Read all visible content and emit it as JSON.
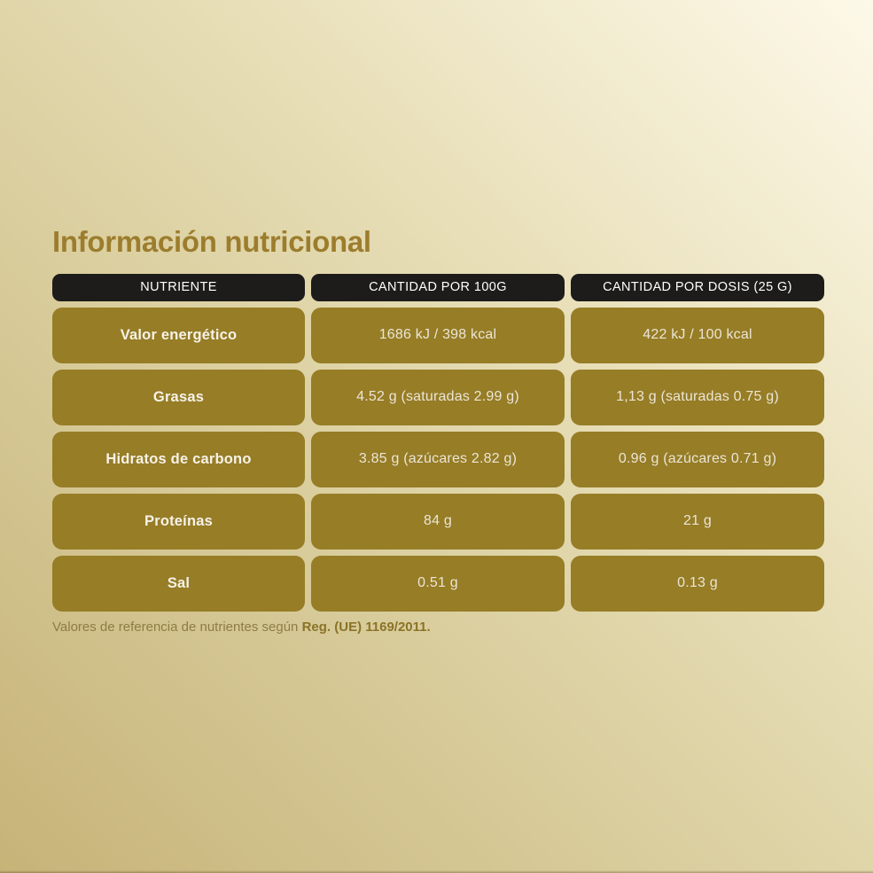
{
  "page": {
    "title": "Información nutricional",
    "footer": {
      "text": "Valores de referencia de nutrientes según ",
      "regulation": "Reg. (UE) 1169/2011."
    }
  },
  "table": {
    "headers": [
      "NUTRIENTE",
      "CANTIDAD POR 100G",
      "CANTIDAD POR DOSIS (25 G)"
    ],
    "rows": [
      {
        "nutrient": "Valor energético",
        "per100g": "1686 kJ / 398 kcal",
        "perDose": "422 kJ / 100 kcal"
      },
      {
        "nutrient": "Grasas",
        "per100g": "4.52 g (saturadas 2.99 g)",
        "perDose": "1,13 g (saturadas 0.75 g)"
      },
      {
        "nutrient": "Hidratos de carbono",
        "per100g": "3.85 g (azúcares 2.82 g)",
        "perDose": "0.96 g (azúcares 0.71 g)"
      },
      {
        "nutrient": "Proteínas",
        "per100g": "84 g",
        "perDose": "21 g"
      },
      {
        "nutrient": "Sal",
        "per100g": "0.51 g",
        "perDose": "0.13 g"
      }
    ]
  },
  "colors": {
    "title": "#9c7d2d",
    "header_pill": "#1d1c1a",
    "cell_pill": "#967d26",
    "background_dark": "#c6b378",
    "background_light": "#fdf9e9"
  }
}
